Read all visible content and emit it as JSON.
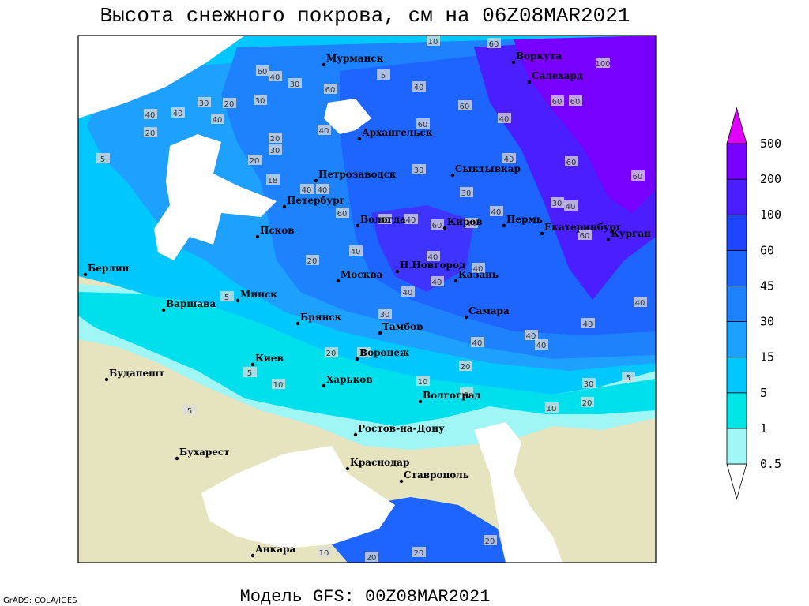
{
  "header": {
    "title": "Высота снежного покрова, см на 06Z08MAR2021"
  },
  "footer": {
    "model": "Модель GFS: 00Z08MAR2021",
    "credit": "GrADS: COLA/IGES"
  },
  "map": {
    "cities": [
      "Мурманск",
      "Воркута",
      "Салехард",
      "Архангельск",
      "Петрозаводск",
      "Сыктывкар",
      "Петербург",
      "Вологда",
      "Киров",
      "Пермь",
      "Екатеринбург",
      "Курган",
      "Псков",
      "Н.Новгород",
      "Казань",
      "Москва",
      "Берлин",
      "Минск",
      "Варшава",
      "Самара",
      "Брянск",
      "Тамбов",
      "Киев",
      "Воронеж",
      "Будапешт",
      "Харьков",
      "Волгоград",
      "Ростов-на-Дону",
      "Бухарест",
      "Краснодар",
      "Ставрополь",
      "Анкара"
    ],
    "contour_labels": [
      10,
      60,
      60,
      40,
      30,
      60,
      5,
      40,
      100,
      60,
      60,
      60,
      30,
      20,
      30,
      40,
      40,
      40,
      60,
      40,
      20,
      40,
      20,
      30,
      5,
      20,
      40,
      60,
      30,
      60,
      40,
      18,
      40,
      30,
      30,
      40,
      40,
      60,
      60,
      40,
      40,
      60,
      40,
      60,
      40,
      20,
      40,
      40,
      40,
      5,
      40,
      30,
      40,
      40,
      40,
      40,
      20,
      5,
      20,
      5,
      10,
      10,
      30,
      5,
      5,
      20,
      10,
      5,
      10,
      20,
      20,
      20
    ]
  },
  "legend": {
    "levels": [
      0.5,
      1,
      5,
      15,
      30,
      45,
      60,
      100,
      200,
      500
    ],
    "colors": [
      "#a0f5f5",
      "#00e6e6",
      "#00c8ff",
      "#1ea0ff",
      "#1e82ff",
      "#1e64ff",
      "#1e46ff",
      "#4b1eff",
      "#7800ff",
      "#a000f0"
    ],
    "over_color": "#e100ff",
    "under_color": "#ffffff"
  }
}
